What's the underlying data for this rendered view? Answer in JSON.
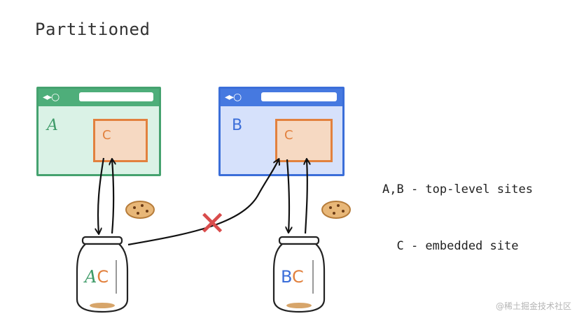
{
  "title": "Partitioned",
  "browsers": [
    {
      "id": "A",
      "site_label": "A",
      "frame_label": "C",
      "nav_glyphs": "◂▸○",
      "color": "#45a26f"
    },
    {
      "id": "B",
      "site_label": "B",
      "frame_label": "C",
      "nav_glyphs": "◂▸○",
      "color": "#3b6ed9"
    }
  ],
  "jars": [
    {
      "top_letter": "A",
      "embedded_letter": "C"
    },
    {
      "top_letter": "B",
      "embedded_letter": "C"
    }
  ],
  "blocked_marker": "✕",
  "legend": {
    "line1": "A,B - top-level sites",
    "line2": "  C - embedded site"
  },
  "watermark": "@稀土掘金技术社区",
  "colors": {
    "green": "#45a26f",
    "blue": "#3b6ed9",
    "orange": "#e2813e",
    "red": "#d94c4c"
  }
}
